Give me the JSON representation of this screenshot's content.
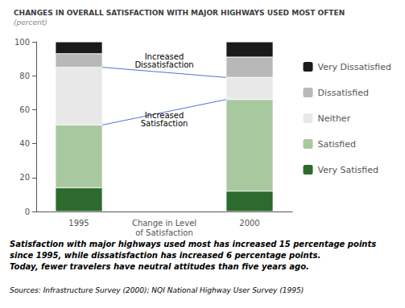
{
  "chart_data": {
    "type": "bar",
    "stacked": true,
    "title": "CHANGES IN OVERALL SATISFACTION WITH MAJOR HIGHWAYS USED MOST OFTEN",
    "subtitle": "(percent)",
    "categories": [
      "1995",
      "Change in Level\nof Satisfaction",
      "2000"
    ],
    "series": [
      {
        "name": "Very Satisfied",
        "color": "#2d6a2d",
        "values": [
          14,
          null,
          12
        ]
      },
      {
        "name": "Satisfied",
        "color": "#a8c8a0",
        "values": [
          37,
          null,
          54
        ]
      },
      {
        "name": "Neither",
        "color": "#e8e8e8",
        "values": [
          34,
          null,
          13
        ]
      },
      {
        "name": "Dissatisfied",
        "color": "#b8b8b8",
        "values": [
          8,
          null,
          12
        ]
      },
      {
        "name": "Very Dissatisfied",
        "color": "#1a1a1a",
        "values": [
          7,
          null,
          9
        ]
      }
    ],
    "annotations": [
      "Increased\nDissatisfaction",
      "Increased\nSatisfaction"
    ],
    "caption": [
      "Satisfaction with major highways used most has increased 15 percentage points",
      "since 1995, while dissatisfaction has increased 6 percentage points.",
      "Today, fewer travelers have neutral attitudes than five years ago."
    ],
    "source": "Sources: Infrastructure Survey (2000); NQI National Highway User Survey (1995)",
    "ylim": [
      0,
      100
    ],
    "yticks": [
      0,
      20,
      40,
      60,
      80,
      100
    ],
    "grid": false,
    "legend": "right"
  }
}
